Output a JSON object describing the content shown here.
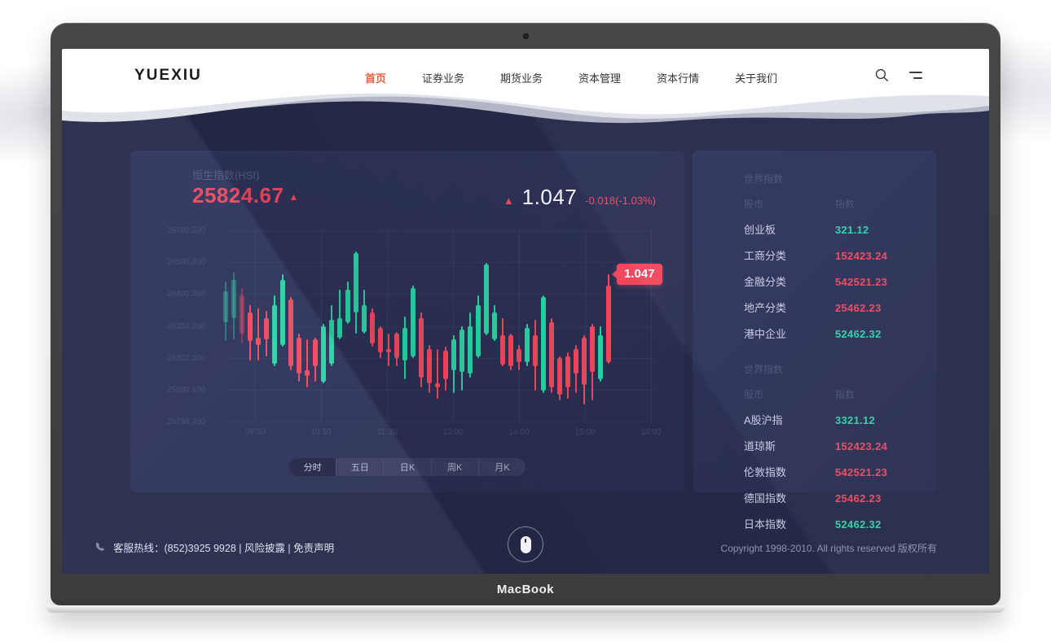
{
  "device": {
    "label": "MacBook"
  },
  "header": {
    "logo": "YUEXIU",
    "nav_items": [
      {
        "label": "首页",
        "active": true
      },
      {
        "label": "证券业务",
        "active": false
      },
      {
        "label": "期货业务",
        "active": false
      },
      {
        "label": "资本管理",
        "active": false
      },
      {
        "label": "资本行情",
        "active": false
      },
      {
        "label": "关于我们",
        "active": false
      }
    ],
    "accent_color": "#e8603f"
  },
  "market_panel": {
    "title": "恒生指数(HSI)",
    "price": "25824.67",
    "change_value": "1.047",
    "change_detail": "-0.018(-1.03%)",
    "tabs": [
      {
        "label": "分时",
        "active": true
      },
      {
        "label": "五日",
        "active": false
      },
      {
        "label": "日K",
        "active": false
      },
      {
        "label": "周K",
        "active": false
      },
      {
        "label": "月K",
        "active": false
      }
    ]
  },
  "chart_data": {
    "type": "candlestick",
    "title": "恒生指数(HSI)",
    "y_ticks": [
      "26702.500",
      "26500.400",
      "26400.300",
      "26354.100",
      "26302.200",
      "25800.100",
      "25799.400"
    ],
    "x_ticks": [
      "09:30",
      "10:30",
      "11:30",
      "13:00",
      "14:00",
      "15:00",
      "16:00"
    ],
    "last_price_label": "1.047",
    "up_color": "#2bd6a5",
    "down_color": "#f4495d",
    "grid": true,
    "note": "candles as [wickTop%, bodyTop%, bodyBottom%, wickBottom%, dir u/d, faded] of plot height",
    "candles": [
      [
        27,
        32,
        48,
        58,
        "u",
        1
      ],
      [
        22,
        26,
        46,
        57,
        "u",
        1
      ],
      [
        30,
        34,
        54,
        59,
        "d",
        1
      ],
      [
        39,
        43,
        58,
        68,
        "d",
        0
      ],
      [
        41,
        56,
        60,
        68,
        "d",
        0
      ],
      [
        42,
        46,
        57,
        66,
        "d",
        0
      ],
      [
        34,
        39,
        70,
        71,
        "u",
        0
      ],
      [
        23,
        26,
        60,
        61,
        "u",
        0
      ],
      [
        35,
        36,
        71,
        73,
        "d",
        0
      ],
      [
        54,
        56,
        75,
        79,
        "d",
        0
      ],
      [
        57,
        73,
        76,
        82,
        "d",
        0
      ],
      [
        56,
        57,
        71,
        79,
        "d",
        0
      ],
      [
        49,
        50,
        79,
        80,
        "u",
        0
      ],
      [
        39,
        47,
        70,
        71,
        "u",
        0
      ],
      [
        31,
        46,
        56,
        57,
        "u",
        0
      ],
      [
        27,
        31,
        48,
        49,
        "u",
        0
      ],
      [
        11,
        12,
        43,
        54,
        "u",
        0
      ],
      [
        31,
        39,
        53,
        54,
        "u",
        0
      ],
      [
        41,
        43,
        59,
        61,
        "d",
        0
      ],
      [
        50,
        51,
        64,
        67,
        "d",
        0
      ],
      [
        54,
        62,
        64,
        71,
        "d",
        0
      ],
      [
        53,
        54,
        67,
        71,
        "d",
        0
      ],
      [
        45,
        51,
        68,
        78,
        "u",
        0
      ],
      [
        29,
        30,
        66,
        67,
        "u",
        0
      ],
      [
        43,
        46,
        77,
        82,
        "d",
        0
      ],
      [
        60,
        62,
        80,
        85,
        "d",
        0
      ],
      [
        62,
        80,
        82,
        88,
        "d",
        0
      ],
      [
        61,
        63,
        78,
        84,
        "d",
        0
      ],
      [
        55,
        57,
        73,
        85,
        "u",
        0
      ],
      [
        50,
        52,
        74,
        84,
        "u",
        0
      ],
      [
        43,
        50,
        75,
        77,
        "u",
        0
      ],
      [
        34,
        39,
        66,
        67,
        "u",
        0
      ],
      [
        17,
        18,
        54,
        55,
        "u",
        0
      ],
      [
        39,
        43,
        57,
        58,
        "u",
        0
      ],
      [
        46,
        55,
        70,
        71,
        "d",
        0
      ],
      [
        54,
        55,
        71,
        73,
        "d",
        0
      ],
      [
        60,
        62,
        69,
        73,
        "d",
        0
      ],
      [
        49,
        51,
        69,
        71,
        "u",
        0
      ],
      [
        47,
        55,
        71,
        84,
        "d",
        0
      ],
      [
        34,
        35,
        84,
        85,
        "u",
        0
      ],
      [
        46,
        48,
        82,
        85,
        "d",
        0
      ],
      [
        66,
        67,
        86,
        89,
        "d",
        0
      ],
      [
        64,
        66,
        82,
        88,
        "d",
        0
      ],
      [
        60,
        62,
        75,
        85,
        "d",
        0
      ],
      [
        55,
        56,
        81,
        91,
        "d",
        0
      ],
      [
        49,
        50,
        74,
        89,
        "d",
        0
      ],
      [
        50,
        55,
        78,
        79,
        "u",
        0
      ],
      [
        23,
        29,
        69,
        70,
        "d",
        0
      ]
    ]
  },
  "indices_panel": {
    "sections": [
      {
        "title": "世界指数",
        "col_market": "股市",
        "col_index": "指数",
        "rows": [
          {
            "name": "创业板",
            "value": "321.12",
            "trend": "up"
          },
          {
            "name": "工商分类",
            "value": "152423.24",
            "trend": "down"
          },
          {
            "name": "金融分类",
            "value": "542521.23",
            "trend": "down"
          },
          {
            "name": "地产分类",
            "value": "25462.23",
            "trend": "down"
          },
          {
            "name": "港中企业",
            "value": "52462.32",
            "trend": "up"
          }
        ]
      },
      {
        "title": "世界指数",
        "col_market": "股市",
        "col_index": "指数",
        "rows": [
          {
            "name": "A股沪指",
            "value": "3321.12",
            "trend": "up"
          },
          {
            "name": "道琼斯",
            "value": "152423.24",
            "trend": "down"
          },
          {
            "name": "伦敦指数",
            "value": "542521.23",
            "trend": "down"
          },
          {
            "name": "德国指数",
            "value": "25462.23",
            "trend": "down"
          },
          {
            "name": "日本指数",
            "value": "52462.32",
            "trend": "up"
          }
        ]
      }
    ]
  },
  "footer": {
    "hotline": "客服热线：(852)3925 9928 | 风险披露 | 免责声明",
    "copyright": "Copyright 1998-2010. All rights reserved 版权所有"
  },
  "colors": {
    "screen_bg": "#252a48",
    "panel_bg": "#2c3156",
    "up": "#2bd6a5",
    "down": "#f4495d"
  }
}
